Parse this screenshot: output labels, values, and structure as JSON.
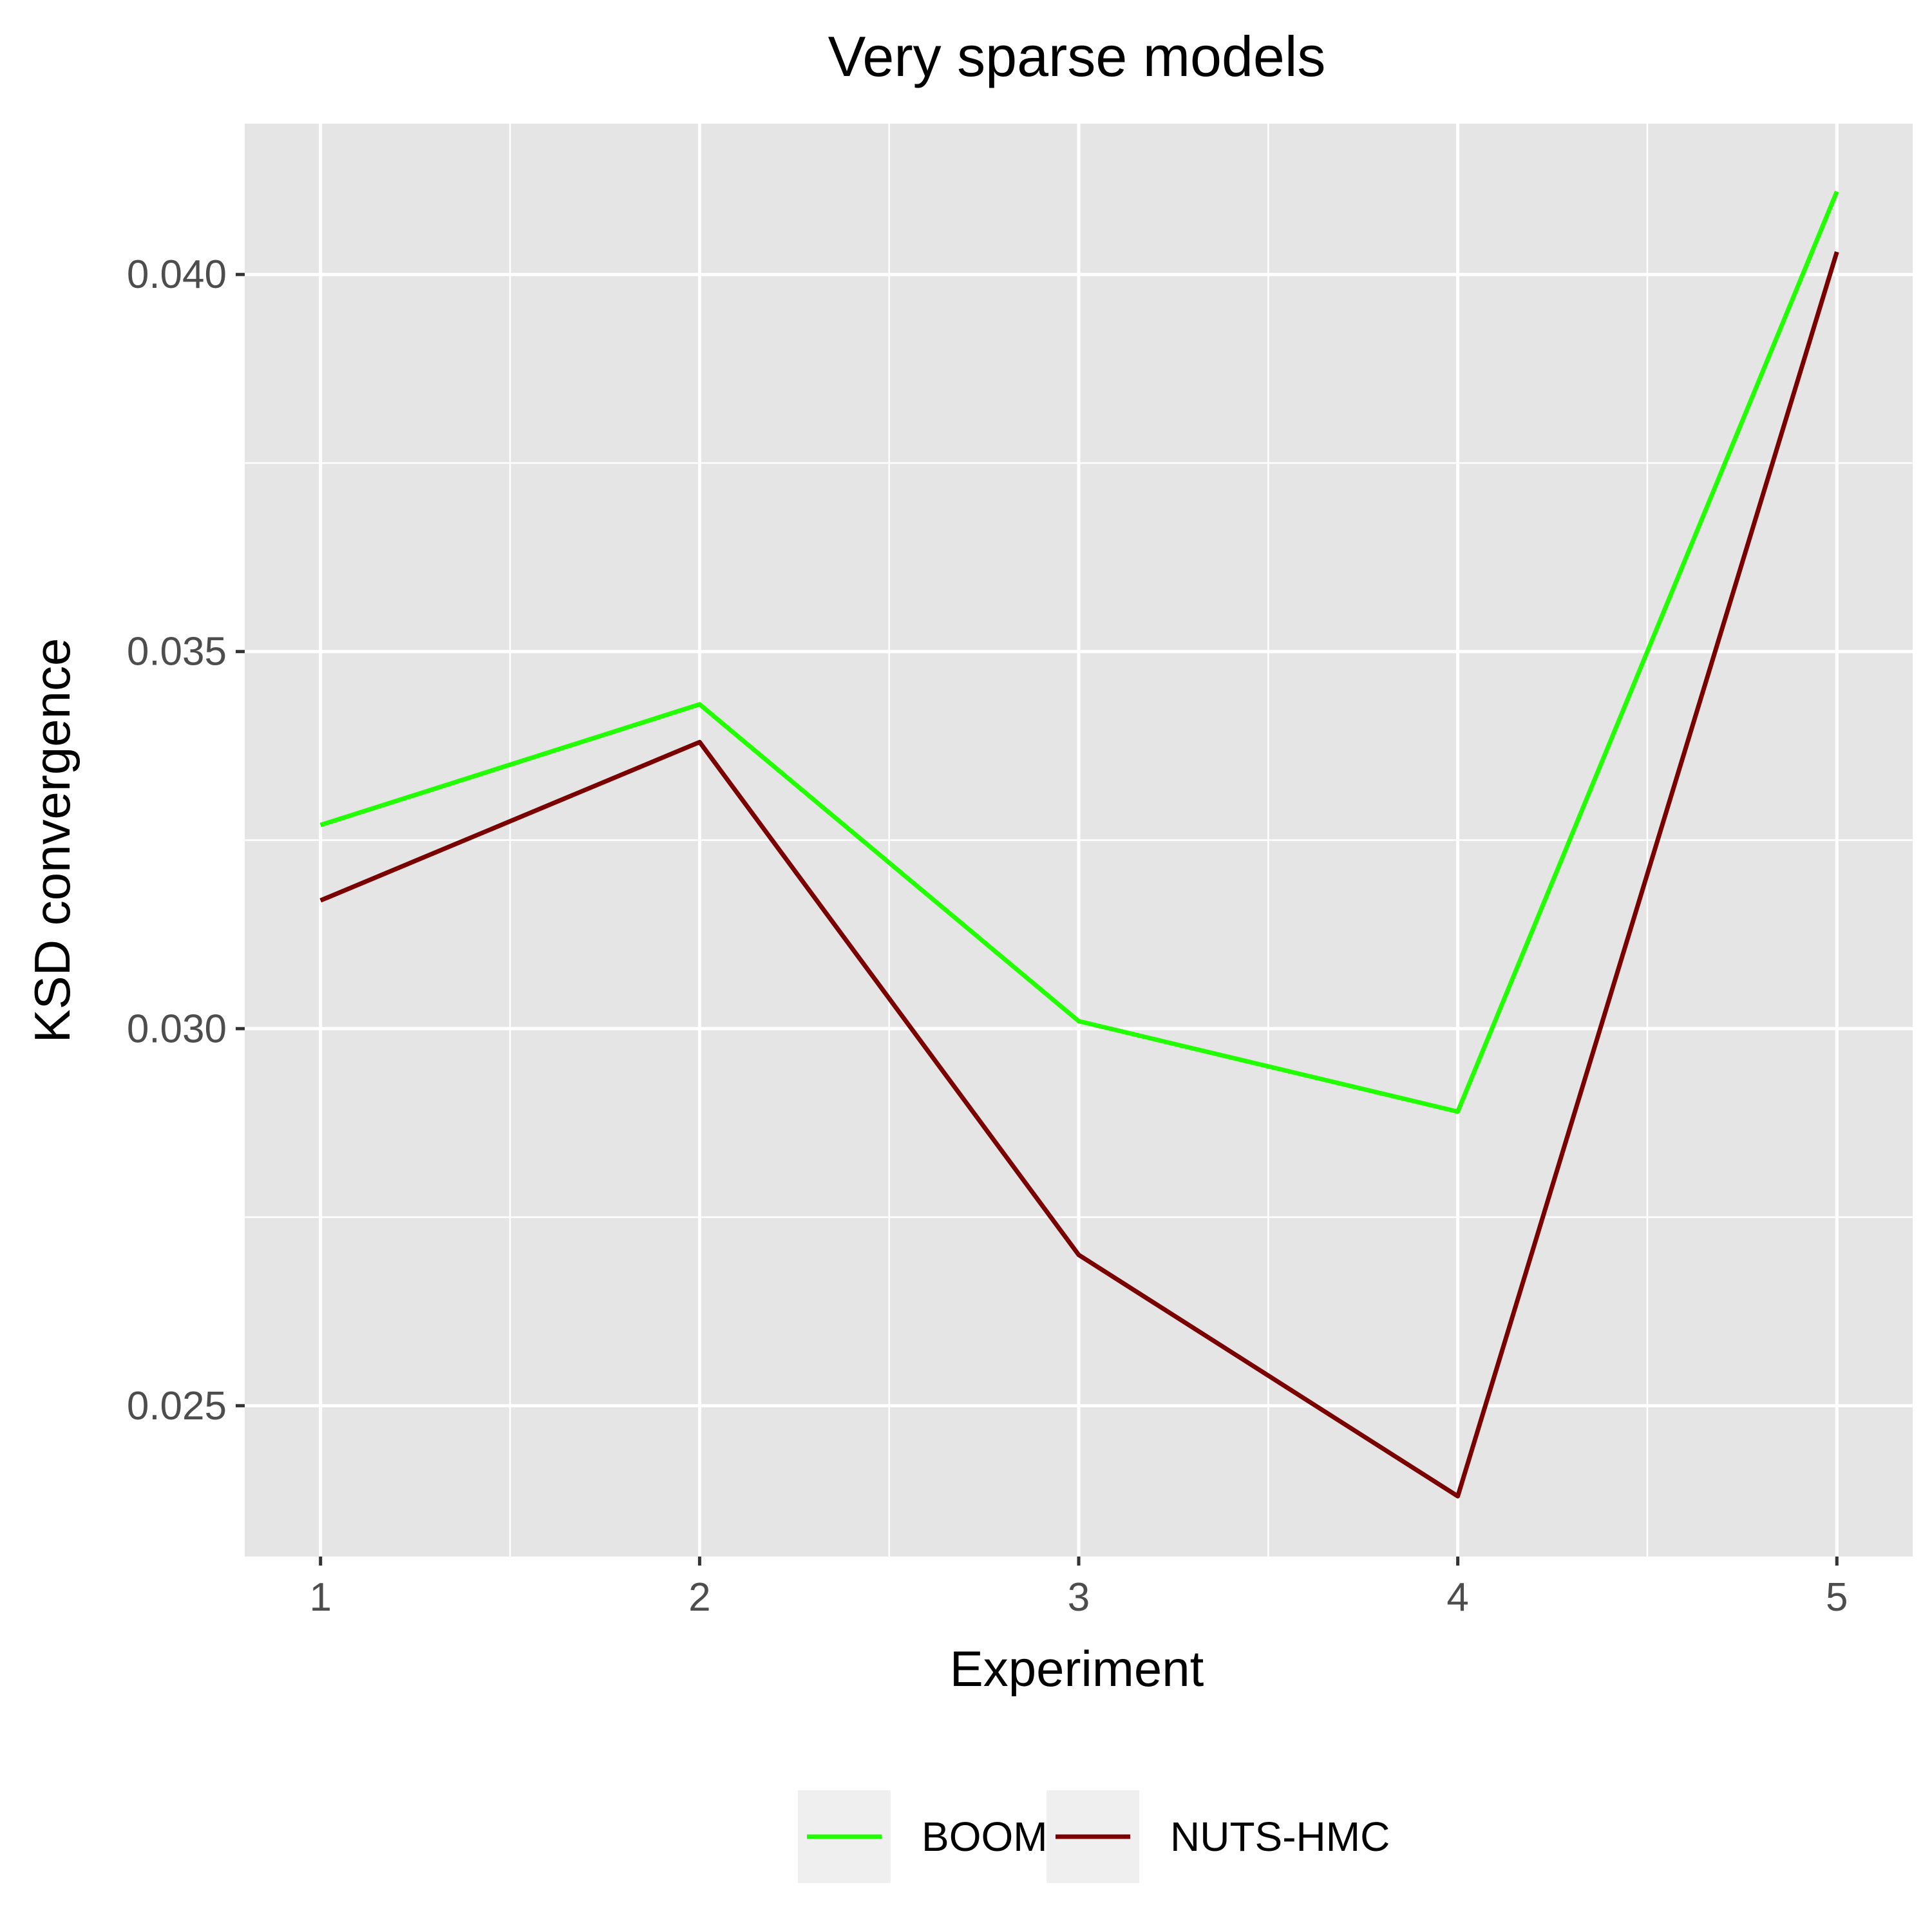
{
  "chart_data": {
    "type": "line",
    "title": "Very sparse models",
    "xlabel": "Experiment",
    "ylabel": "KSD convergence",
    "x": [
      1,
      2,
      3,
      4,
      5
    ],
    "x_tick_labels": [
      "1",
      "2",
      "3",
      "4",
      "5"
    ],
    "y_ticks": [
      0.025,
      0.03,
      0.035,
      0.04
    ],
    "y_tick_labels": [
      "0.025",
      "0.030",
      "0.035",
      "0.040"
    ],
    "xlim": [
      0.8,
      5.2
    ],
    "ylim": [
      0.023,
      0.042
    ],
    "grid": true,
    "legend_position": "bottom",
    "series": [
      {
        "name": "BOOM",
        "color": "#22ff00",
        "values": [
          0.0327,
          0.0343,
          0.0301,
          0.0289,
          0.0411
        ]
      },
      {
        "name": "NUTS-HMC",
        "color": "#7a0000",
        "values": [
          0.0317,
          0.0338,
          0.027,
          0.0238,
          0.0403
        ]
      }
    ]
  }
}
